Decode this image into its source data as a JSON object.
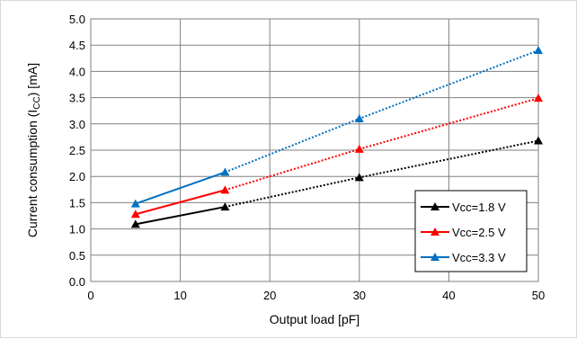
{
  "chart_data": {
    "type": "line",
    "title": "",
    "xlabel": "Output load [pF]",
    "ylabel_main": "Current consumption (I",
    "ylabel_sub": "CC",
    "ylabel_end": ") [mA]",
    "xlim": [
      0,
      50
    ],
    "ylim": [
      0,
      5
    ],
    "xticks": [
      "0",
      "10",
      "20",
      "30",
      "40",
      "50"
    ],
    "yticks": [
      "0.0",
      "0.5",
      "1.0",
      "1.5",
      "2.0",
      "2.5",
      "3.0",
      "3.5",
      "4.0",
      "4.5",
      "5.0"
    ],
    "grid": true,
    "legend_position": "bottom-right",
    "series": [
      {
        "name": "Vcc=1.8 V",
        "color": "#000000",
        "solid": [
          [
            5,
            1.09
          ],
          [
            15,
            1.42
          ]
        ],
        "dotted": [
          [
            15,
            1.42
          ],
          [
            30,
            1.98
          ],
          [
            50,
            2.68
          ]
        ]
      },
      {
        "name": "Vcc=2.5 V",
        "color": "#ff0000",
        "solid": [
          [
            5,
            1.28
          ],
          [
            15,
            1.74
          ]
        ],
        "dotted": [
          [
            15,
            1.74
          ],
          [
            30,
            2.52
          ],
          [
            50,
            3.49
          ]
        ]
      },
      {
        "name": "Vcc=3.3 V",
        "color": "#0070c0",
        "solid": [
          [
            5,
            1.48
          ],
          [
            15,
            2.08
          ]
        ],
        "dotted": [
          [
            15,
            2.08
          ],
          [
            30,
            3.1
          ],
          [
            50,
            4.4
          ]
        ]
      }
    ]
  }
}
